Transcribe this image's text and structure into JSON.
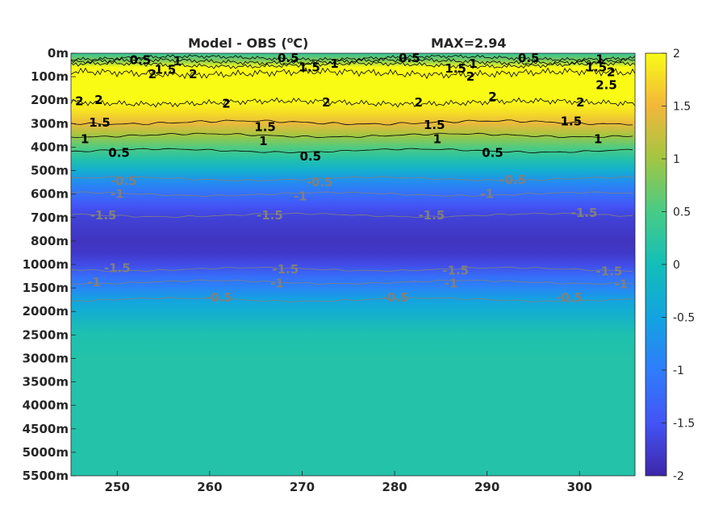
{
  "chart_data": {
    "type": "heatmap",
    "title_left": "Model - OBS (",
    "title_unit": "o",
    "title_unit_tail": "C)",
    "title_right": "MAX=2.94",
    "x_range": [
      245,
      306
    ],
    "x_ticks": [
      {
        "value": 250,
        "label": "250"
      },
      {
        "value": 260,
        "label": "260"
      },
      {
        "value": 270,
        "label": "270"
      },
      {
        "value": 280,
        "label": "280"
      },
      {
        "value": 290,
        "label": "290"
      },
      {
        "value": 300,
        "label": "300"
      }
    ],
    "y_ticks": [
      "0m",
      "100m",
      "200m",
      "300m",
      "400m",
      "500m",
      "600m",
      "700m",
      "800m",
      "1000m",
      "1500m",
      "2000m",
      "2500m",
      "3000m",
      "3500m",
      "4000m",
      "4500m",
      "5000m",
      "5500m"
    ],
    "colorbar": {
      "range": [
        -2,
        2
      ],
      "ticks": [
        {
          "value": 2,
          "label": "2"
        },
        {
          "value": 1.5,
          "label": "1.5"
        },
        {
          "value": 1,
          "label": "1"
        },
        {
          "value": 0.5,
          "label": "0.5"
        },
        {
          "value": 0,
          "label": "0"
        },
        {
          "value": -0.5,
          "label": "-0.5"
        },
        {
          "value": -1,
          "label": "-1"
        },
        {
          "value": -1.5,
          "label": "-1.5"
        },
        {
          "value": -2,
          "label": "-2"
        }
      ]
    },
    "depth_profile": [
      {
        "level": 0,
        "value": 0.3
      },
      {
        "level": 0.3,
        "value": 0.8
      },
      {
        "level": 0.6,
        "value": 2.2
      },
      {
        "level": 1.0,
        "value": 2.4
      },
      {
        "level": 2.0,
        "value": 2.1
      },
      {
        "level": 2.5,
        "value": 1.8
      },
      {
        "level": 3.0,
        "value": 1.45
      },
      {
        "level": 3.5,
        "value": 1.0
      },
      {
        "level": 4.0,
        "value": 0.55
      },
      {
        "level": 4.5,
        "value": 0.15
      },
      {
        "level": 5.0,
        "value": -0.3
      },
      {
        "level": 5.5,
        "value": -0.8
      },
      {
        "level": 6.0,
        "value": -1.15
      },
      {
        "level": 6.5,
        "value": -1.5
      },
      {
        "level": 7.0,
        "value": -1.7
      },
      {
        "level": 8.0,
        "value": -1.85
      },
      {
        "level": 8.5,
        "value": -1.8
      },
      {
        "level": 9.0,
        "value": -1.6
      },
      {
        "level": 9.5,
        "value": -1.2
      },
      {
        "level": 10.0,
        "value": -0.9
      },
      {
        "level": 10.5,
        "value": -0.5
      },
      {
        "level": 11.0,
        "value": -0.3
      },
      {
        "level": 12.0,
        "value": 0.1
      },
      {
        "level": 13.0,
        "value": 0.15
      },
      {
        "level": 18.0,
        "value": 0.15
      }
    ],
    "contour_lines": [
      {
        "value": 0.5,
        "color": "#000000",
        "level": 0.2,
        "wiggle": 2.5
      },
      {
        "value": 1,
        "color": "#000000",
        "level": 0.35,
        "wiggle": 3
      },
      {
        "value": 1.5,
        "color": "#000000",
        "level": 0.5,
        "wiggle": 3
      },
      {
        "value": 2,
        "color": "#000000",
        "level": 0.85,
        "wiggle": 5
      },
      {
        "value": 2,
        "color": "#000000",
        "level": 2.1,
        "wiggle": 4
      },
      {
        "value": 1.5,
        "color": "#000000",
        "level": 2.95,
        "wiggle": 1.5
      },
      {
        "value": 1,
        "color": "#000000",
        "level": 3.5,
        "wiggle": 1.2
      },
      {
        "value": 0.5,
        "color": "#000000",
        "level": 4.15,
        "wiggle": 1
      },
      {
        "value": -0.5,
        "color": "#808080",
        "level": 5.35,
        "wiggle": 1
      },
      {
        "value": -1,
        "color": "#808080",
        "level": 6.0,
        "wiggle": 1
      },
      {
        "value": -1.5,
        "color": "#808080",
        "level": 6.9,
        "wiggle": 1
      },
      {
        "value": -1.5,
        "color": "#808080",
        "level": 9.2,
        "wiggle": 1
      },
      {
        "value": -1,
        "color": "#808080",
        "level": 9.75,
        "wiggle": 1
      },
      {
        "value": -0.5,
        "color": "#808080",
        "level": 10.5,
        "wiggle": 1
      }
    ],
    "contour_labels": [
      {
        "text": "0.5",
        "x": 252.5,
        "level": 0.3,
        "color": "#000000"
      },
      {
        "text": "1",
        "x": 256.5,
        "level": 0.35,
        "color": "#000000"
      },
      {
        "text": "2",
        "x": 253.8,
        "level": 0.9,
        "color": "#000000"
      },
      {
        "text": "1.5",
        "x": 255.2,
        "level": 0.7,
        "color": "#000000"
      },
      {
        "text": "2",
        "x": 258.2,
        "level": 0.9,
        "color": "#000000"
      },
      {
        "text": "0.5",
        "x": 268.5,
        "level": 0.2,
        "color": "#000000"
      },
      {
        "text": "1.5",
        "x": 270.8,
        "level": 0.6,
        "color": "#000000"
      },
      {
        "text": "1",
        "x": 273.5,
        "level": 0.45,
        "color": "#000000"
      },
      {
        "text": "0.5",
        "x": 281.6,
        "level": 0.2,
        "color": "#000000"
      },
      {
        "text": "1.5",
        "x": 286.6,
        "level": 0.65,
        "color": "#000000"
      },
      {
        "text": "1",
        "x": 288.5,
        "level": 0.45,
        "color": "#000000"
      },
      {
        "text": "2",
        "x": 288.2,
        "level": 1.0,
        "color": "#000000"
      },
      {
        "text": "0.5",
        "x": 294.5,
        "level": 0.2,
        "color": "#000000"
      },
      {
        "text": "1.5",
        "x": 301.8,
        "level": 0.6,
        "color": "#000000"
      },
      {
        "text": "2",
        "x": 303.4,
        "level": 0.8,
        "color": "#000000"
      },
      {
        "text": "2.5",
        "x": 302.9,
        "level": 1.35,
        "color": "#000000"
      },
      {
        "text": "1",
        "x": 302.2,
        "level": 0.25,
        "color": "#000000"
      },
      {
        "text": "2",
        "x": 245.9,
        "level": 2.05,
        "color": "#000000"
      },
      {
        "text": "2",
        "x": 248.0,
        "level": 2.0,
        "color": "#000000"
      },
      {
        "text": "2",
        "x": 261.8,
        "level": 2.15,
        "color": "#000000"
      },
      {
        "text": "2",
        "x": 272.6,
        "level": 2.1,
        "color": "#000000"
      },
      {
        "text": "2",
        "x": 282.6,
        "level": 2.1,
        "color": "#000000"
      },
      {
        "text": "2",
        "x": 290.6,
        "level": 1.85,
        "color": "#000000"
      },
      {
        "text": "2",
        "x": 300.1,
        "level": 2.1,
        "color": "#000000"
      },
      {
        "text": "1.5",
        "x": 248.1,
        "level": 2.95,
        "color": "#000000"
      },
      {
        "text": "1.5",
        "x": 266.0,
        "level": 3.15,
        "color": "#000000"
      },
      {
        "text": "1.5",
        "x": 284.3,
        "level": 3.05,
        "color": "#000000"
      },
      {
        "text": "1.5",
        "x": 299.1,
        "level": 2.9,
        "color": "#000000"
      },
      {
        "text": "1",
        "x": 246.5,
        "level": 3.65,
        "color": "#000000"
      },
      {
        "text": "1",
        "x": 265.8,
        "level": 3.75,
        "color": "#000000"
      },
      {
        "text": "1",
        "x": 284.6,
        "level": 3.65,
        "color": "#000000"
      },
      {
        "text": "1",
        "x": 302.0,
        "level": 3.65,
        "color": "#000000"
      },
      {
        "text": "0.5",
        "x": 250.2,
        "level": 4.25,
        "color": "#000000"
      },
      {
        "text": "0.5",
        "x": 270.9,
        "level": 4.4,
        "color": "#000000"
      },
      {
        "text": "0.5",
        "x": 290.6,
        "level": 4.25,
        "color": "#000000"
      },
      {
        "text": "-0.5",
        "x": 250.7,
        "level": 5.45,
        "color": "#808080"
      },
      {
        "text": "-0.5",
        "x": 271.9,
        "level": 5.5,
        "color": "#808080"
      },
      {
        "text": "-0.5",
        "x": 292.8,
        "level": 5.4,
        "color": "#808080"
      },
      {
        "text": "-1",
        "x": 250.0,
        "level": 6.0,
        "color": "#808080"
      },
      {
        "text": "-1",
        "x": 269.8,
        "level": 6.1,
        "color": "#808080"
      },
      {
        "text": "-1",
        "x": 290.0,
        "level": 6.0,
        "color": "#808080"
      },
      {
        "text": "-1.5",
        "x": 248.5,
        "level": 6.9,
        "color": "#808080"
      },
      {
        "text": "-1.5",
        "x": 266.5,
        "level": 6.9,
        "color": "#808080"
      },
      {
        "text": "-1.5",
        "x": 284.0,
        "level": 6.9,
        "color": "#808080"
      },
      {
        "text": "-1.5",
        "x": 300.5,
        "level": 6.8,
        "color": "#808080"
      },
      {
        "text": "-1.5",
        "x": 250.0,
        "level": 9.15,
        "color": "#808080"
      },
      {
        "text": "-1.5",
        "x": 268.2,
        "level": 9.2,
        "color": "#808080"
      },
      {
        "text": "-1.5",
        "x": 286.6,
        "level": 9.25,
        "color": "#808080"
      },
      {
        "text": "-1.5",
        "x": 303.2,
        "level": 9.3,
        "color": "#808080"
      },
      {
        "text": "-1",
        "x": 247.5,
        "level": 9.75,
        "color": "#808080"
      },
      {
        "text": "-1",
        "x": 267.3,
        "level": 9.8,
        "color": "#808080"
      },
      {
        "text": "-1",
        "x": 286.1,
        "level": 9.8,
        "color": "#808080"
      },
      {
        "text": "-1",
        "x": 304.5,
        "level": 9.85,
        "color": "#808080"
      },
      {
        "text": "-0.5",
        "x": 261.0,
        "level": 10.4,
        "color": "#808080"
      },
      {
        "text": "-0.5",
        "x": 280.1,
        "level": 10.4,
        "color": "#808080"
      },
      {
        "text": "-0.5",
        "x": 298.9,
        "level": 10.4,
        "color": "#808080"
      }
    ]
  }
}
